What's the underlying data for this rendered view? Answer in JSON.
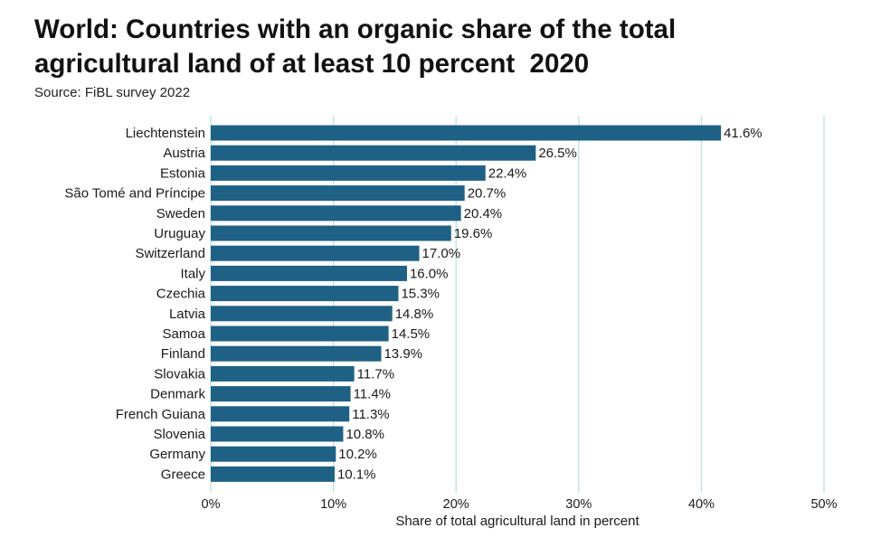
{
  "title_lines": [
    "World: Countries with an organic share of the total",
    "agricultural land of at least 10 percent  2020"
  ],
  "source": "Source: FiBL survey 2022",
  "colors": {
    "bar": "#1f6185",
    "grid": "#bfe0e0",
    "text": "#1a1a1a"
  },
  "chart_data": {
    "type": "bar",
    "orientation": "horizontal",
    "title": "World: Countries with an organic share of the total agricultural land of at least 10 percent  2020",
    "xlabel": "Share of total agricultural land in percent",
    "ylabel": "",
    "xlim": [
      0,
      50
    ],
    "x_ticks": [
      0,
      10,
      20,
      30,
      40,
      50
    ],
    "x_tick_labels": [
      "0%",
      "10%",
      "20%",
      "30%",
      "40%",
      "50%"
    ],
    "grid": "vertical",
    "categories": [
      "Liechtenstein",
      "Austria",
      "Estonia",
      "São Tomé and Príncipe",
      "Sweden",
      "Uruguay",
      "Switzerland",
      "Italy",
      "Czechia",
      "Latvia",
      "Samoa",
      "Finland",
      "Slovakia",
      "Denmark",
      "French Guiana",
      "Slovenia",
      "Germany",
      "Greece"
    ],
    "values": [
      41.6,
      26.5,
      22.4,
      20.7,
      20.4,
      19.6,
      17.0,
      16.0,
      15.3,
      14.8,
      14.5,
      13.9,
      11.7,
      11.4,
      11.3,
      10.8,
      10.2,
      10.1
    ],
    "value_labels": [
      "41.6%",
      "26.5%",
      "22.4%",
      "20.7%",
      "20.4%",
      "19.6%",
      "17.0%",
      "16.0%",
      "15.3%",
      "14.8%",
      "14.5%",
      "13.9%",
      "11.7%",
      "11.4%",
      "11.3%",
      "10.8%",
      "10.2%",
      "10.1%"
    ]
  }
}
